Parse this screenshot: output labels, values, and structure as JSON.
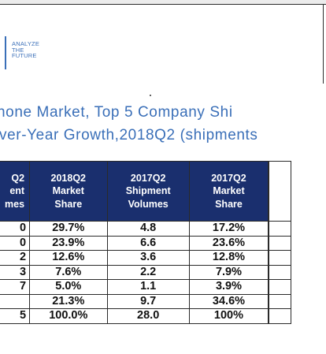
{
  "logo": {
    "lines": [
      "ANALYZE",
      "THE",
      "FUTURE"
    ]
  },
  "title": {
    "line1": "hone Market, Top 5 Company Shi",
    "line2": "ver-Year Growth,2018Q2 (shipments"
  },
  "table": {
    "headers": [
      [
        "Q2",
        "ent",
        "mes"
      ],
      [
        "2018Q2",
        "Market",
        "Share"
      ],
      [
        "2017Q2",
        "Shipment",
        "Volumes"
      ],
      [
        "2017Q2",
        "Market",
        "Share"
      ],
      []
    ],
    "rows": [
      [
        "0",
        "29.7%",
        "4.8",
        "17.2%",
        ""
      ],
      [
        "0",
        "23.9%",
        "6.6",
        "23.6%",
        ""
      ],
      [
        "2",
        "12.6%",
        "3.6",
        "12.8%",
        ""
      ],
      [
        "3",
        "7.6%",
        "2.2",
        "7.9%",
        ""
      ],
      [
        "7",
        "5.0%",
        "1.1",
        "3.9%",
        ""
      ],
      [
        "",
        "21.3%",
        "9.7",
        "34.6%",
        ""
      ],
      [
        "5",
        "100.0%",
        "28.0",
        "100%",
        ""
      ]
    ]
  },
  "colors": {
    "brand_blue": "#3a6fb8",
    "header_navy": "#1a2f6e"
  }
}
